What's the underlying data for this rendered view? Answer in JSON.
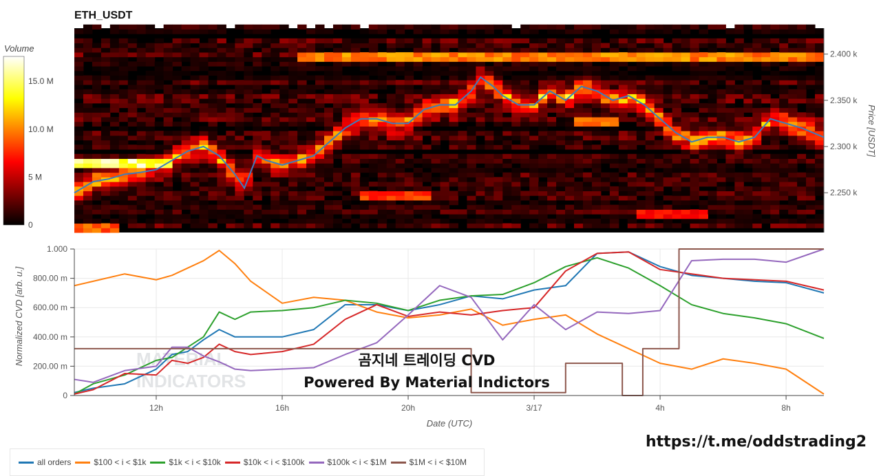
{
  "chart_data": [
    {
      "type": "heatmap",
      "title": "ETH_USDT",
      "ylabel": "Price [USDT]",
      "ylim": [
        2207,
        2428
      ],
      "xlim_hours": [
        9.4,
        33.2
      ],
      "yticks": [
        {
          "v": 2250,
          "label": "2.250 k"
        },
        {
          "v": 2300,
          "label": "2.300 k"
        },
        {
          "v": 2350,
          "label": "2.350 k"
        },
        {
          "v": 2400,
          "label": "2.400 k"
        }
      ],
      "colorbar": {
        "label": "Volume",
        "range": [
          0,
          17.6
        ],
        "ticks": [
          {
            "v": 0,
            "label": "0"
          },
          {
            "v": 5,
            "label": "5 M"
          },
          {
            "v": 10,
            "label": "10.0 M"
          },
          {
            "v": 15,
            "label": "15.0 M"
          }
        ]
      },
      "price_line": {
        "color": "#3b7dbf",
        "x": [
          9.4,
          10,
          10.5,
          11,
          11.5,
          12,
          12.5,
          13,
          13.5,
          14,
          14.5,
          14.8,
          15.2,
          15.5,
          16,
          16.5,
          17,
          17.5,
          18,
          18.5,
          19,
          19.5,
          20,
          20.5,
          21,
          21.5,
          22,
          22.3,
          22.7,
          23,
          23.5,
          24,
          24.5,
          25,
          25.5,
          26,
          26.5,
          27,
          27.5,
          28,
          28.5,
          29,
          29.5,
          30,
          30.5,
          31,
          31.5,
          32,
          32.5,
          33.2
        ],
        "y": [
          2250,
          2262,
          2265,
          2270,
          2272,
          2275,
          2285,
          2295,
          2300,
          2290,
          2270,
          2255,
          2290,
          2285,
          2280,
          2285,
          2290,
          2305,
          2320,
          2330,
          2330,
          2325,
          2325,
          2340,
          2345,
          2345,
          2360,
          2375,
          2365,
          2355,
          2345,
          2345,
          2360,
          2350,
          2365,
          2360,
          2350,
          2355,
          2345,
          2330,
          2315,
          2305,
          2310,
          2310,
          2305,
          2310,
          2330,
          2325,
          2320,
          2310
        ]
      },
      "walls": [
        {
          "price": 2397,
          "from": 16.5,
          "to": 33.2,
          "volume": 10
        },
        {
          "price": 2282,
          "from": 9.4,
          "to": 12.5,
          "volume": 15
        },
        {
          "price": 2245,
          "from": 18.5,
          "to": 20.7,
          "volume": 8
        },
        {
          "price": 2212,
          "from": 9.4,
          "to": 10.8,
          "volume": 9
        },
        {
          "price": 2226,
          "from": 27.5,
          "to": 29.5,
          "volume": 7
        },
        {
          "price": 2325,
          "from": 25.5,
          "to": 26.6,
          "volume": 9
        }
      ]
    },
    {
      "type": "line",
      "xlabel": "Date (UTC)",
      "ylabel": "Normalized CVD [arb. u.]",
      "ylim": [
        0,
        1
      ],
      "xlim_hours": [
        9.4,
        33.2
      ],
      "xticks": [
        {
          "v": 12,
          "label": "12h"
        },
        {
          "v": 16,
          "label": "16h"
        },
        {
          "v": 20,
          "label": "20h"
        },
        {
          "v": 24,
          "label": "3/17"
        },
        {
          "v": 28,
          "label": "4h"
        },
        {
          "v": 32,
          "label": "8h"
        }
      ],
      "yticks": [
        {
          "v": 0,
          "label": "0"
        },
        {
          "v": 0.2,
          "label": "200.00 m"
        },
        {
          "v": 0.4,
          "label": "400.00 m"
        },
        {
          "v": 0.6,
          "label": "600.00 m"
        },
        {
          "v": 0.8,
          "label": "800.00 m"
        },
        {
          "v": 1,
          "label": "1.000"
        }
      ],
      "x": [
        9.4,
        10,
        11,
        12,
        12.5,
        13,
        13.5,
        14,
        14.5,
        15,
        16,
        17,
        18,
        19,
        20,
        21,
        22,
        23,
        24,
        25,
        26,
        27,
        28,
        29,
        30,
        31,
        32,
        33.2
      ],
      "series": [
        {
          "name": "all orders",
          "color": "#1f77b4",
          "values": [
            0.02,
            0.05,
            0.08,
            0.18,
            0.28,
            0.3,
            0.38,
            0.45,
            0.4,
            0.4,
            0.4,
            0.45,
            0.62,
            0.62,
            0.58,
            0.62,
            0.68,
            0.66,
            0.72,
            0.75,
            0.97,
            0.98,
            0.88,
            0.82,
            0.8,
            0.78,
            0.77,
            0.7
          ]
        },
        {
          "name": "$100 < i < $1k",
          "color": "#ff7f0e",
          "values": [
            0.75,
            0.78,
            0.83,
            0.79,
            0.82,
            0.87,
            0.92,
            0.99,
            0.9,
            0.78,
            0.63,
            0.67,
            0.65,
            0.57,
            0.53,
            0.55,
            0.59,
            0.48,
            0.52,
            0.55,
            0.42,
            0.32,
            0.22,
            0.18,
            0.25,
            0.22,
            0.18,
            0.01
          ]
        },
        {
          "name": "$1k < i < $10k",
          "color": "#2ca02c",
          "values": [
            0.01,
            0.08,
            0.14,
            0.24,
            0.26,
            0.33,
            0.4,
            0.57,
            0.52,
            0.57,
            0.58,
            0.6,
            0.65,
            0.63,
            0.58,
            0.65,
            0.68,
            0.69,
            0.77,
            0.88,
            0.94,
            0.87,
            0.75,
            0.62,
            0.56,
            0.53,
            0.49,
            0.39
          ]
        },
        {
          "name": "$10k < i < $100k",
          "color": "#d62728",
          "values": [
            0.01,
            0.04,
            0.15,
            0.14,
            0.24,
            0.22,
            0.26,
            0.35,
            0.3,
            0.28,
            0.3,
            0.35,
            0.52,
            0.62,
            0.54,
            0.57,
            0.55,
            0.58,
            0.6,
            0.85,
            0.97,
            0.98,
            0.86,
            0.83,
            0.8,
            0.79,
            0.78,
            0.72
          ]
        },
        {
          "name": "$100k < i < $1M",
          "color": "#9467bd",
          "values": [
            0.11,
            0.09,
            0.17,
            0.2,
            0.33,
            0.33,
            0.27,
            0.23,
            0.18,
            0.17,
            0.18,
            0.19,
            0.28,
            0.36,
            0.55,
            0.75,
            0.67,
            0.38,
            0.62,
            0.45,
            0.57,
            0.56,
            0.58,
            0.92,
            0.93,
            0.93,
            0.91,
            1.0
          ]
        },
        {
          "name": "$1M < i < $10M",
          "color": "#8c564b",
          "step": true,
          "x": [
            9.4,
            22.0,
            25.0,
            26.8,
            27.45,
            28.6,
            33.2
          ],
          "values": [
            0.32,
            0.02,
            0.22,
            0.0,
            0.32,
            1.0,
            1.0
          ]
        }
      ]
    }
  ],
  "overlay": {
    "line1": "곰지네 트레이딩 CVD",
    "line2": "Powered By Material Indictors"
  },
  "watermark": "MATERIAL INDICATORS",
  "url": "https://t.me/oddstrading2"
}
